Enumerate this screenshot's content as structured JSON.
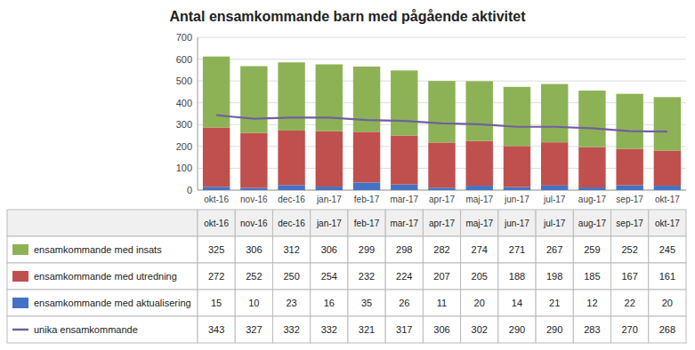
{
  "chart_data": {
    "type": "bar",
    "title": "Antal ensamkommande barn med pågående aktivitet",
    "categories": [
      "okt-16",
      "nov-16",
      "dec-16",
      "jan-17",
      "feb-17",
      "mar-17",
      "apr-17",
      "maj-17",
      "jun-17",
      "jul-17",
      "aug-17",
      "sep-17",
      "okt-17"
    ],
    "stacked": true,
    "grid": true,
    "ylim": [
      0,
      700
    ],
    "yticks": [
      0,
      100,
      200,
      300,
      400,
      500,
      600,
      700
    ],
    "series": [
      {
        "name": "ensamkommande med aktualisering",
        "type": "bar",
        "color": "#4472C4",
        "values": [
          15,
          10,
          23,
          16,
          35,
          26,
          11,
          20,
          14,
          21,
          12,
          22,
          20
        ]
      },
      {
        "name": "ensamkommande med utredning",
        "type": "bar",
        "color": "#C0504D",
        "values": [
          272,
          252,
          250,
          254,
          232,
          224,
          207,
          205,
          188,
          198,
          185,
          167,
          161
        ]
      },
      {
        "name": "ensamkommande med insats",
        "type": "bar",
        "color": "#8DB255",
        "values": [
          325,
          306,
          312,
          306,
          299,
          298,
          282,
          274,
          271,
          267,
          259,
          252,
          245
        ]
      },
      {
        "name": "unika ensamkommande",
        "type": "line",
        "color": "#7060A0",
        "values": [
          343,
          327,
          332,
          332,
          321,
          317,
          306,
          302,
          290,
          290,
          283,
          270,
          268
        ]
      }
    ]
  }
}
